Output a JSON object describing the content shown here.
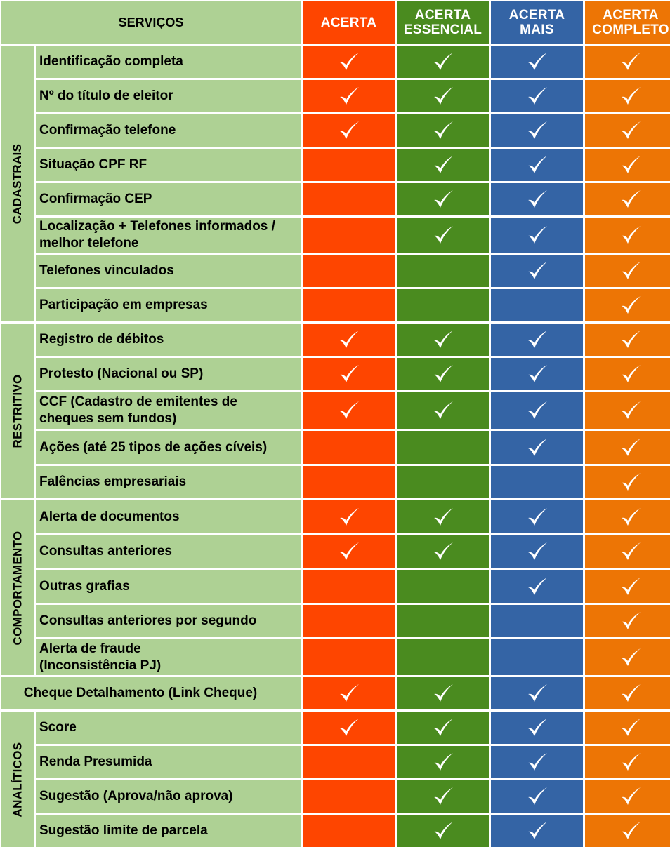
{
  "header": {
    "services_label": "SERVIÇOS",
    "plans": [
      {
        "label": "ACERTA",
        "color": "#fe4500"
      },
      {
        "label": "ACERTA\nESSENCIAL",
        "color": "#4a8b1f"
      },
      {
        "label": "ACERTA\nMAIS",
        "color": "#3464a5"
      },
      {
        "label": "ACERTA\nCOMPLETO",
        "color": "#ed7505"
      }
    ]
  },
  "row_color": "#aed194",
  "check_icon": "check-icon",
  "categories": [
    {
      "name": "CADASTRAIS",
      "rows": [
        {
          "label": "Identificação completa",
          "checks": [
            true,
            true,
            true,
            true
          ]
        },
        {
          "label": "Nº do título de eleitor",
          "checks": [
            true,
            true,
            true,
            true
          ]
        },
        {
          "label": "Confirmação telefone",
          "checks": [
            true,
            true,
            true,
            true
          ]
        },
        {
          "label": "Situação CPF RF",
          "checks": [
            false,
            true,
            true,
            true
          ]
        },
        {
          "label": "Confirmação CEP",
          "checks": [
            false,
            true,
            true,
            true
          ]
        },
        {
          "label": "Localização + Telefones informados /\nmelhor telefone",
          "checks": [
            false,
            true,
            true,
            true
          ]
        },
        {
          "label": "Telefones vinculados",
          "checks": [
            false,
            false,
            true,
            true
          ]
        },
        {
          "label": "Participação em empresas",
          "checks": [
            false,
            false,
            false,
            true
          ]
        }
      ]
    },
    {
      "name": "RESTRITIVO",
      "rows": [
        {
          "label": "Registro de débitos",
          "checks": [
            true,
            true,
            true,
            true
          ]
        },
        {
          "label": "Protesto (Nacional ou SP)",
          "checks": [
            true,
            true,
            true,
            true
          ]
        },
        {
          "label": "CCF (Cadastro de emitentes de\n cheques sem fundos)",
          "checks": [
            true,
            true,
            true,
            true
          ]
        },
        {
          "label": "Ações (até 25 tipos de ações cíveis)",
          "checks": [
            false,
            false,
            true,
            true
          ]
        },
        {
          "label": "Falências empresariais",
          "checks": [
            false,
            false,
            false,
            true
          ]
        }
      ]
    },
    {
      "name": "COMPORTAMENTO",
      "rows": [
        {
          "label": "Alerta de documentos",
          "checks": [
            true,
            true,
            true,
            true
          ]
        },
        {
          "label": "Consultas anteriores",
          "checks": [
            true,
            true,
            true,
            true
          ]
        },
        {
          "label": "Outras grafias",
          "checks": [
            false,
            false,
            true,
            true
          ]
        },
        {
          "label": "Consultas anteriores por segundo",
          "checks": [
            false,
            false,
            false,
            true
          ]
        },
        {
          "label": "Alerta de fraude\n(Inconsistência PJ)",
          "checks": [
            false,
            false,
            false,
            true
          ]
        }
      ]
    },
    {
      "name": "",
      "rows": [
        {
          "label": "Cheque Detalhamento (Link Cheque)",
          "checks": [
            true,
            true,
            true,
            true
          ]
        }
      ]
    },
    {
      "name": "ANALÍTICOS",
      "rows": [
        {
          "label": "Score",
          "checks": [
            true,
            true,
            true,
            true
          ]
        },
        {
          "label": "Renda Presumida",
          "checks": [
            false,
            true,
            true,
            true
          ]
        },
        {
          "label": "Sugestão (Aprova/não aprova)",
          "checks": [
            false,
            true,
            true,
            true
          ]
        },
        {
          "label": "Sugestão limite de parcela",
          "checks": [
            false,
            true,
            true,
            true
          ]
        }
      ]
    }
  ]
}
